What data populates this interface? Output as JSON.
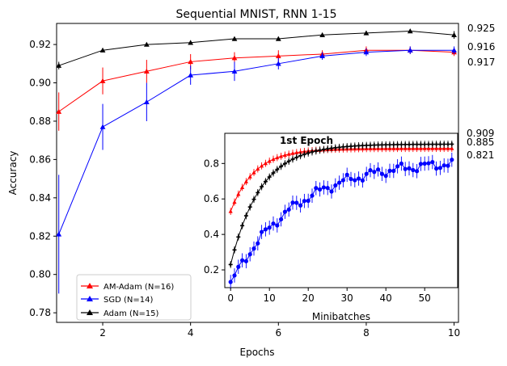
{
  "chart_data": [
    {
      "type": "line",
      "title": "Sequential MNIST, RNN 1-15",
      "xlabel": "Epochs",
      "ylabel": "Accuracy",
      "xlim": [
        0.95,
        10.1
      ],
      "ylim": [
        0.775,
        0.931
      ],
      "xticks": [
        2,
        4,
        6,
        8,
        10
      ],
      "yticks": [
        0.78,
        0.8,
        0.82,
        0.84,
        0.86,
        0.88,
        0.9,
        0.92
      ],
      "grid": false,
      "legend": "lower-left",
      "x": [
        1,
        2,
        3,
        4,
        5,
        6,
        7,
        8,
        9,
        10
      ],
      "series": [
        {
          "name": "AM-Adam (N=16)",
          "color": "#ff0000",
          "values": [
            0.885,
            0.901,
            0.906,
            0.911,
            0.913,
            0.914,
            0.915,
            0.917,
            0.917,
            0.916
          ],
          "errors": [
            0.01,
            0.007,
            0.006,
            0.004,
            0.003,
            0.003,
            0.002,
            0.002,
            0.002,
            0.002
          ]
        },
        {
          "name": "SGD (N=14)",
          "color": "#0000ff",
          "values": [
            0.821,
            0.877,
            0.89,
            0.904,
            0.906,
            0.91,
            0.914,
            0.916,
            0.917,
            0.917
          ],
          "errors": [
            0.031,
            0.012,
            0.01,
            0.005,
            0.005,
            0.003,
            0.002,
            0.002,
            0.002,
            0.002
          ]
        },
        {
          "name": "Adam (N=15)",
          "color": "#000000",
          "values": [
            0.909,
            0.917,
            0.92,
            0.921,
            0.923,
            0.923,
            0.925,
            0.926,
            0.927,
            0.925
          ],
          "errors": [
            0.002,
            0.001,
            0.001,
            0.001,
            0.001,
            0.001,
            0.001,
            0.001,
            0.001,
            0.002
          ]
        }
      ],
      "annotations": [
        "0.925",
        "0.916",
        "0.917"
      ]
    },
    {
      "type": "line",
      "title": "1st Epoch",
      "xlabel": "Minibatches",
      "ylabel": "",
      "xlim": [
        -1.5,
        58.5
      ],
      "ylim": [
        0.1,
        0.97
      ],
      "xticks": [
        0,
        10,
        20,
        30,
        40,
        50
      ],
      "yticks": [
        0.2,
        0.4,
        0.6,
        0.8
      ],
      "grid": false,
      "n_points": 58,
      "series": [
        {
          "name": "AM-Adam (N=16)",
          "color": "#ff0000",
          "start": 0.53,
          "end": 0.885,
          "rate": 0.16,
          "error": 0.02
        },
        {
          "name": "SGD (N=14)",
          "color": "#0000ff",
          "start": 0.12,
          "end": 0.821,
          "rate": 0.06,
          "error": 0.04
        },
        {
          "name": "Adam (N=15)",
          "color": "#000000",
          "start": 0.23,
          "end": 0.909,
          "rate": 0.13,
          "error": 0.02
        }
      ],
      "annotations": [
        "0.909",
        "0.885",
        "0.821"
      ]
    }
  ]
}
